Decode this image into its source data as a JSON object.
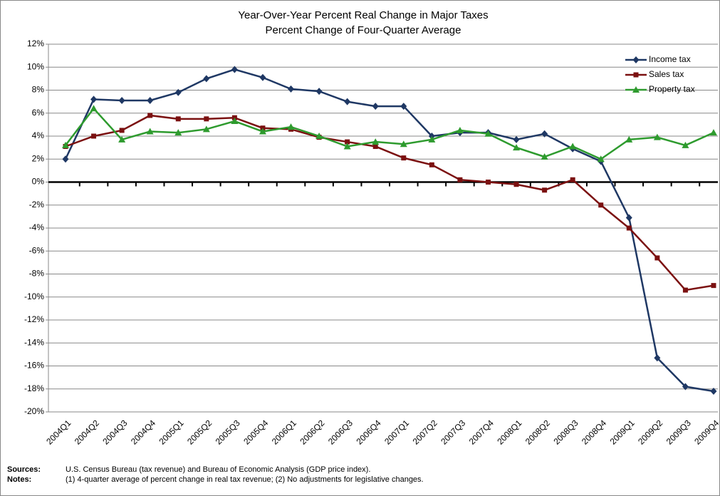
{
  "chart_data": {
    "type": "line",
    "title": "Year-Over-Year Percent Real Change in Major Taxes",
    "subtitle": "Percent Change of Four-Quarter Average",
    "categories": [
      "2004Q1",
      "2004Q2",
      "2004Q3",
      "2004Q4",
      "2005Q1",
      "2005Q2",
      "2005Q3",
      "2005Q4",
      "2006Q1",
      "2006Q2",
      "2006Q3",
      "2006Q4",
      "2007Q1",
      "2007Q2",
      "2007Q3",
      "2007Q4",
      "2008Q1",
      "2008Q2",
      "2008Q3",
      "2008Q4",
      "2009Q1",
      "2009Q2",
      "2009Q3",
      "2009Q4"
    ],
    "series": [
      {
        "name": "Income tax",
        "color": "#1f3864",
        "marker": "diamond",
        "values": [
          2.0,
          7.2,
          7.1,
          7.1,
          7.8,
          9.0,
          9.8,
          9.1,
          8.1,
          7.9,
          7.0,
          6.6,
          6.6,
          4.0,
          4.3,
          4.3,
          3.7,
          4.2,
          2.9,
          1.8,
          -3.1,
          -15.3,
          -17.8,
          -18.2
        ]
      },
      {
        "name": "Sales tax",
        "color": "#7b1010",
        "marker": "square",
        "values": [
          3.1,
          4.0,
          4.5,
          5.8,
          5.5,
          5.5,
          5.6,
          4.7,
          4.6,
          3.9,
          3.5,
          3.1,
          2.1,
          1.5,
          0.2,
          0.0,
          -0.2,
          -0.7,
          0.2,
          -2.0,
          -4.0,
          -6.6,
          -9.4,
          -9.0
        ]
      },
      {
        "name": "Property tax",
        "color": "#2e9b2e",
        "marker": "triangle",
        "values": [
          3.2,
          6.4,
          3.7,
          4.4,
          4.3,
          4.6,
          5.3,
          4.4,
          4.8,
          4.0,
          3.1,
          3.5,
          3.3,
          3.7,
          4.5,
          4.2,
          3.0,
          2.2,
          3.1,
          2.0,
          3.7,
          3.9,
          3.2,
          4.3
        ]
      }
    ],
    "ylim": [
      -20,
      12
    ],
    "yticks": [
      {
        "value": 12,
        "label": "12%"
      },
      {
        "value": 10,
        "label": "10%"
      },
      {
        "value": 8,
        "label": "8%"
      },
      {
        "value": 6,
        "label": "6%"
      },
      {
        "value": 4,
        "label": "4%"
      },
      {
        "value": 2,
        "label": "2%"
      },
      {
        "value": 0,
        "label": "0%"
      },
      {
        "value": -2,
        "label": "-2%"
      },
      {
        "value": -4,
        "label": "-4%"
      },
      {
        "value": -6,
        "label": "-6%"
      },
      {
        "value": -8,
        "label": "-8%"
      },
      {
        "value": -10,
        "label": "-10%"
      },
      {
        "value": -12,
        "label": "-12%"
      },
      {
        "value": -14,
        "label": "-14%"
      },
      {
        "value": -16,
        "label": "-16%"
      },
      {
        "value": -18,
        "label": "-18%"
      },
      {
        "value": -20,
        "label": "-20%"
      }
    ],
    "grid": true,
    "legend": "top-right",
    "notes": [
      {
        "label": "Sources:",
        "text": "U.S. Census Bureau (tax revenue) and Bureau of Economic Analysis (GDP price index)."
      },
      {
        "label": "Notes:",
        "text": "(1) 4-quarter average of percent change in real tax revenue; (2) No adjustments for legislative changes."
      }
    ]
  }
}
